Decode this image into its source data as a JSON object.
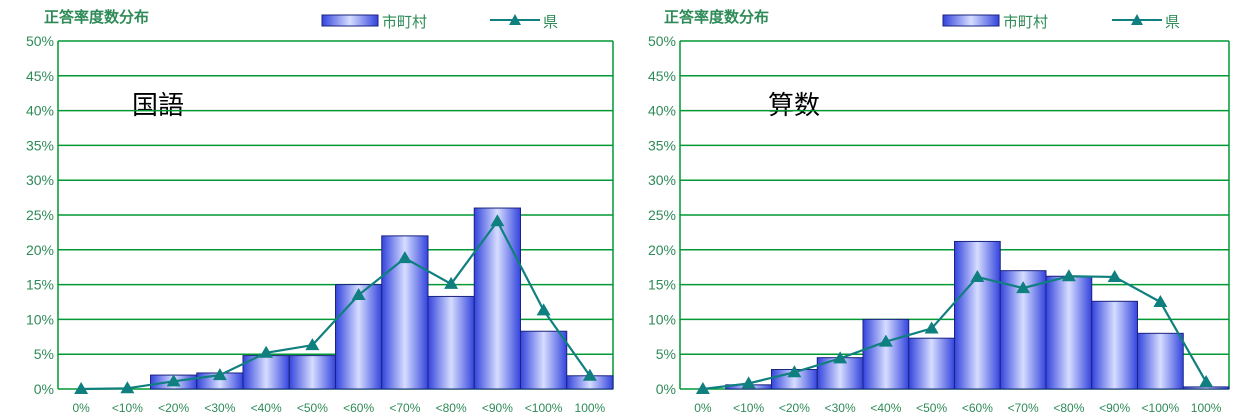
{
  "colors": {
    "grid": "#009933",
    "axis": "#009933",
    "label": "#2e8b57",
    "line": "#0f7f7f",
    "bar_dark": "#3344dd",
    "bar_light": "#d6ddff"
  },
  "chart_data": [
    {
      "type": "bar",
      "title": "正答率度数分布",
      "subject_label": "国語",
      "categories": [
        "0%",
        "<10%",
        "<20%",
        "<30%",
        "<40%",
        "<50%",
        "<60%",
        "<70%",
        "<80%",
        "<90%",
        "<100%",
        "100%"
      ],
      "y_ticks": [
        "0%",
        "5%",
        "10%",
        "15%",
        "20%",
        "25%",
        "30%",
        "35%",
        "40%",
        "45%",
        "50%"
      ],
      "ylim": [
        0,
        50
      ],
      "grid": true,
      "legend_position": "top-right",
      "series": [
        {
          "name": "市町村",
          "kind": "bar",
          "values": [
            0,
            0,
            2.0,
            2.3,
            4.8,
            4.8,
            15.0,
            22.0,
            13.3,
            26.0,
            8.3,
            1.9
          ]
        },
        {
          "name": "県",
          "kind": "line",
          "values": [
            0,
            0.1,
            1.1,
            2.0,
            5.2,
            6.3,
            13.5,
            18.8,
            15.1,
            24.1,
            11.3,
            1.9
          ]
        }
      ]
    },
    {
      "type": "bar",
      "title": "正答率度数分布",
      "subject_label": "算数",
      "categories": [
        "0%",
        "<10%",
        "<20%",
        "<30%",
        "<40%",
        "<50%",
        "<60%",
        "<70%",
        "<80%",
        "<90%",
        "<100%",
        "100%"
      ],
      "y_ticks": [
        "0%",
        "5%",
        "10%",
        "15%",
        "20%",
        "25%",
        "30%",
        "35%",
        "40%",
        "45%",
        "50%"
      ],
      "ylim": [
        0,
        50
      ],
      "grid": true,
      "legend_position": "top-right",
      "series": [
        {
          "name": "市町村",
          "kind": "bar",
          "values": [
            0,
            0.6,
            2.8,
            4.5,
            10.0,
            7.3,
            21.2,
            17.0,
            16.2,
            12.6,
            8.0,
            0.3
          ]
        },
        {
          "name": "県",
          "kind": "line",
          "values": [
            0,
            0.8,
            2.4,
            4.4,
            6.8,
            8.7,
            16.1,
            14.5,
            16.2,
            16.1,
            12.5,
            1.0
          ]
        }
      ]
    }
  ]
}
